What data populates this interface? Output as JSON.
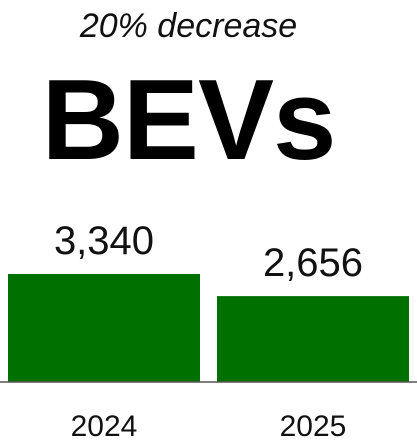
{
  "chart_data": {
    "type": "bar",
    "subtitle": "20% decrease",
    "title": "BEVs",
    "categories": [
      "2024",
      "2025"
    ],
    "values": [
      3340,
      2656
    ],
    "value_labels": [
      "3,340",
      "2,656"
    ],
    "ylim": [
      0,
      3340
    ],
    "bar_color": "#007000",
    "baseline_color": "#555555",
    "grid": false,
    "legend": "none"
  }
}
